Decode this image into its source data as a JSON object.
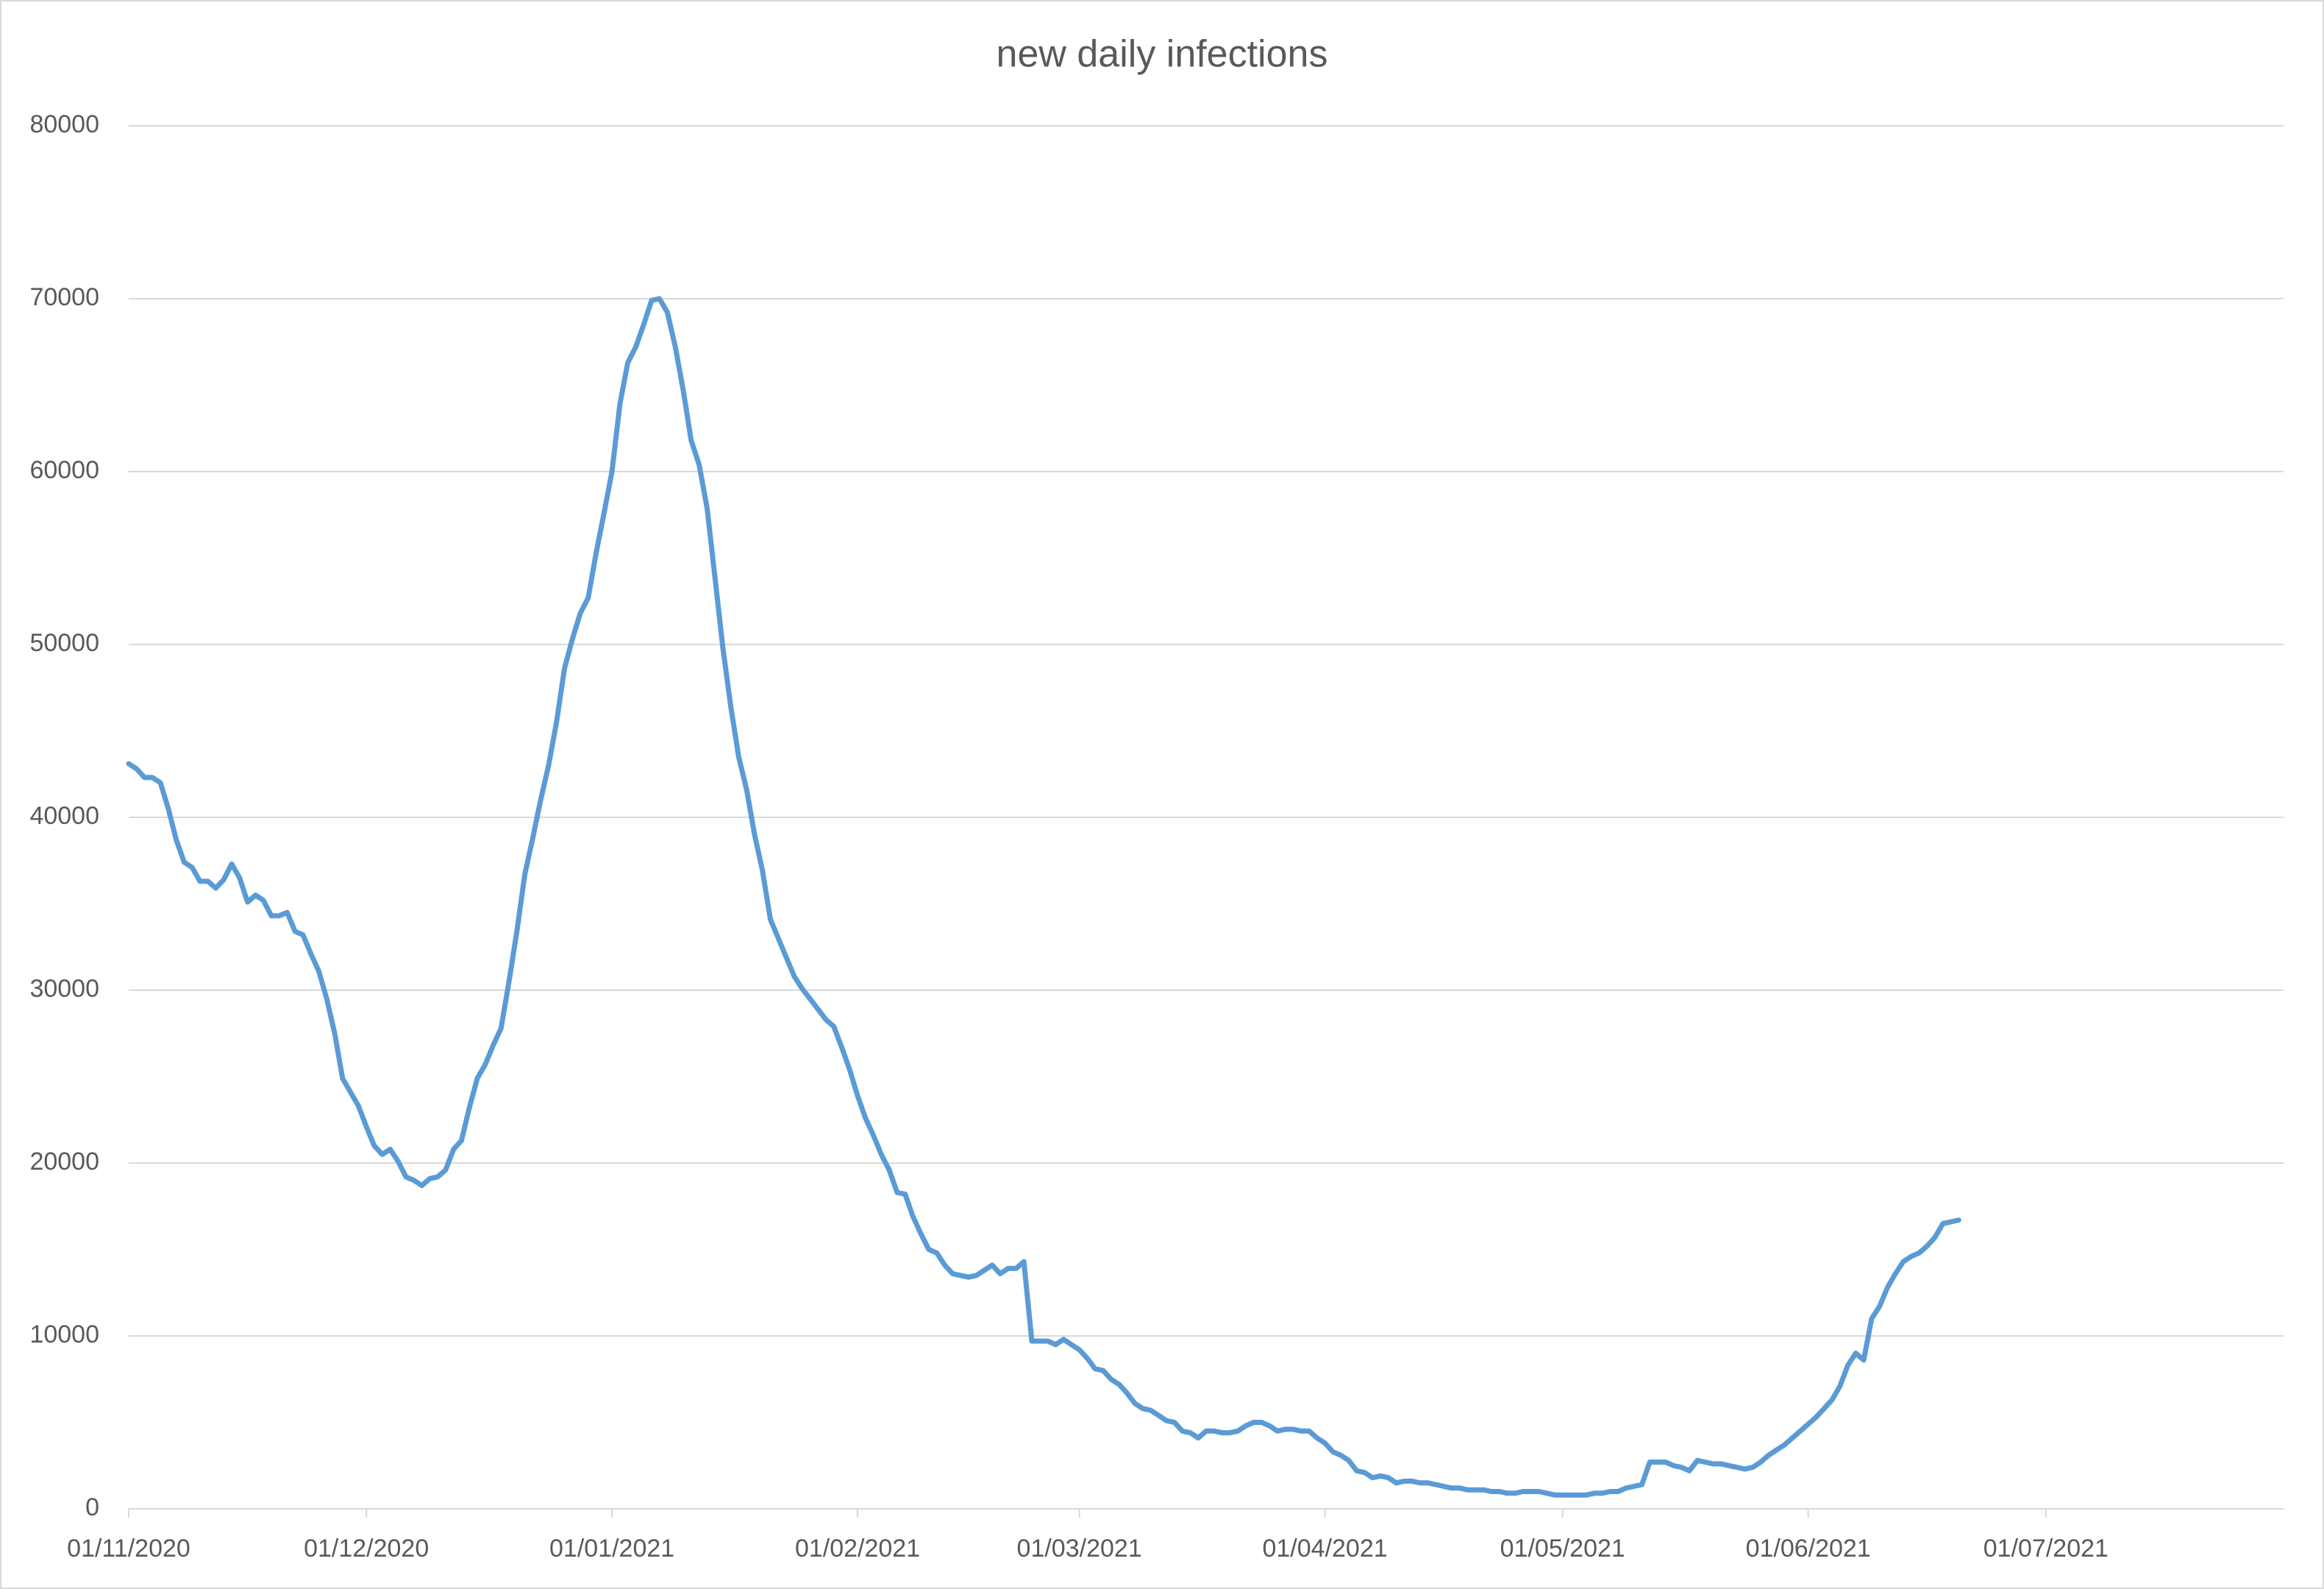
{
  "chart_data": {
    "type": "line",
    "title": "new daily infections",
    "color": "#5b9bd5",
    "grid": true,
    "x": [
      "01/11/2020",
      "02/11/2020",
      "03/11/2020",
      "04/11/2020",
      "05/11/2020",
      "06/11/2020",
      "07/11/2020",
      "08/11/2020",
      "09/11/2020",
      "10/11/2020",
      "11/11/2020",
      "12/11/2020",
      "13/11/2020",
      "14/11/2020",
      "15/11/2020",
      "16/11/2020",
      "17/11/2020",
      "18/11/2020",
      "19/11/2020",
      "20/11/2020",
      "21/11/2020",
      "22/11/2020",
      "23/11/2020",
      "24/11/2020",
      "25/11/2020",
      "26/11/2020",
      "27/11/2020",
      "28/11/2020",
      "29/11/2020",
      "30/11/2020",
      "01/12/2020",
      "02/12/2020",
      "03/12/2020",
      "04/12/2020",
      "05/12/2020",
      "06/12/2020",
      "07/12/2020",
      "08/12/2020",
      "09/12/2020",
      "10/12/2020",
      "11/12/2020",
      "12/12/2020",
      "13/12/2020",
      "14/12/2020",
      "15/12/2020",
      "16/12/2020",
      "17/12/2020",
      "18/12/2020",
      "19/12/2020",
      "20/12/2020",
      "21/12/2020",
      "22/12/2020",
      "23/12/2020",
      "24/12/2020",
      "25/12/2020",
      "26/12/2020",
      "27/12/2020",
      "28/12/2020",
      "29/12/2020",
      "30/12/2020",
      "31/12/2020",
      "01/01/2021",
      "02/01/2021",
      "03/01/2021",
      "04/01/2021",
      "05/01/2021",
      "06/01/2021",
      "07/01/2021",
      "08/01/2021",
      "09/01/2021",
      "10/01/2021",
      "11/01/2021",
      "12/01/2021",
      "13/01/2021",
      "14/01/2021",
      "15/01/2021",
      "16/01/2021",
      "17/01/2021",
      "18/01/2021",
      "19/01/2021",
      "20/01/2021",
      "21/01/2021",
      "22/01/2021",
      "23/01/2021",
      "24/01/2021",
      "25/01/2021",
      "26/01/2021",
      "27/01/2021",
      "28/01/2021",
      "29/01/2021",
      "30/01/2021",
      "31/01/2021",
      "01/02/2021",
      "02/02/2021",
      "03/02/2021",
      "04/02/2021",
      "05/02/2021",
      "06/02/2021",
      "07/02/2021",
      "08/02/2021",
      "09/02/2021",
      "10/02/2021",
      "11/02/2021",
      "12/02/2021",
      "13/02/2021",
      "14/02/2021",
      "15/02/2021",
      "16/02/2021",
      "17/02/2021",
      "18/02/2021",
      "19/02/2021",
      "20/02/2021",
      "21/02/2021",
      "22/02/2021",
      "23/02/2021",
      "24/02/2021",
      "25/02/2021",
      "26/02/2021",
      "27/02/2021",
      "28/02/2021",
      "01/03/2021",
      "02/03/2021",
      "03/03/2021",
      "04/03/2021",
      "05/03/2021",
      "06/03/2021",
      "07/03/2021",
      "08/03/2021",
      "09/03/2021",
      "10/03/2021",
      "11/03/2021",
      "12/03/2021",
      "13/03/2021",
      "14/03/2021",
      "15/03/2021",
      "16/03/2021",
      "17/03/2021",
      "18/03/2021",
      "19/03/2021",
      "20/03/2021",
      "21/03/2021",
      "22/03/2021",
      "23/03/2021",
      "24/03/2021",
      "25/03/2021",
      "26/03/2021",
      "27/03/2021",
      "28/03/2021",
      "29/03/2021",
      "30/03/2021",
      "31/03/2021",
      "01/04/2021",
      "02/04/2021",
      "03/04/2021",
      "04/04/2021",
      "05/04/2021",
      "06/04/2021",
      "07/04/2021",
      "08/04/2021",
      "09/04/2021",
      "10/04/2021",
      "11/04/2021",
      "12/04/2021",
      "13/04/2021",
      "14/04/2021",
      "15/04/2021",
      "16/04/2021",
      "17/04/2021",
      "18/04/2021",
      "19/04/2021",
      "20/04/2021",
      "21/04/2021",
      "22/04/2021",
      "23/04/2021",
      "24/04/2021",
      "25/04/2021",
      "26/04/2021",
      "27/04/2021",
      "28/04/2021",
      "29/04/2021",
      "30/04/2021",
      "01/05/2021",
      "02/05/2021",
      "03/05/2021",
      "04/05/2021",
      "05/05/2021",
      "06/05/2021",
      "07/05/2021",
      "08/05/2021",
      "09/05/2021",
      "10/05/2021",
      "11/05/2021",
      "12/05/2021",
      "13/05/2021",
      "14/05/2021",
      "15/05/2021",
      "16/05/2021",
      "17/05/2021",
      "18/05/2021",
      "19/05/2021",
      "20/05/2021",
      "21/05/2021",
      "22/05/2021",
      "23/05/2021",
      "24/05/2021",
      "25/05/2021",
      "26/05/2021",
      "27/05/2021",
      "28/05/2021",
      "29/05/2021",
      "30/05/2021",
      "31/05/2021",
      "01/06/2021",
      "02/06/2021",
      "03/06/2021",
      "04/06/2021",
      "05/06/2021",
      "06/06/2021",
      "07/06/2021",
      "08/06/2021",
      "09/06/2021",
      "10/06/2021",
      "11/06/2021",
      "12/06/2021",
      "13/06/2021",
      "14/06/2021",
      "15/06/2021",
      "16/06/2021",
      "17/06/2021",
      "18/06/2021",
      "19/06/2021",
      "20/06/2021"
    ],
    "values": [
      43100,
      42800,
      42300,
      42300,
      42000,
      40500,
      38700,
      37400,
      37100,
      36300,
      36300,
      35900,
      36400,
      37300,
      36500,
      35100,
      35500,
      35200,
      34300,
      34300,
      34500,
      33400,
      33200,
      32100,
      31100,
      29500,
      27500,
      24900,
      24100,
      23300,
      22100,
      21000,
      20500,
      20800,
      20100,
      19200,
      19000,
      18700,
      19100,
      19200,
      19600,
      20800,
      21300,
      23200,
      24900,
      25700,
      26800,
      27800,
      30500,
      33400,
      36700,
      38800,
      41000,
      43000,
      45500,
      48600,
      50300,
      51800,
      52700,
      55300,
      57600,
      60000,
      63900,
      66300,
      67200,
      68500,
      69900,
      70000,
      69200,
      67200,
      64700,
      61800,
      60400,
      57900,
      53900,
      49800,
      46400,
      43500,
      41600,
      39000,
      36900,
      34100,
      33000,
      31900,
      30800,
      30100,
      29500,
      28900,
      28300,
      27900,
      26700,
      25400,
      23900,
      22600,
      21600,
      20500,
      19600,
      18300,
      18200,
      16900,
      15900,
      15000,
      14800,
      14100,
      13600,
      13500,
      13400,
      13500,
      13800,
      14100,
      13600,
      13900,
      13900,
      14300,
      9700,
      9700,
      9700,
      9500,
      9800,
      9500,
      9200,
      8700,
      8100,
      8000,
      7500,
      7200,
      6700,
      6100,
      5800,
      5700,
      5400,
      5100,
      5000,
      4500,
      4400,
      4100,
      4500,
      4500,
      4400,
      4400,
      4500,
      4800,
      5000,
      5000,
      4800,
      4500,
      4600,
      4600,
      4500,
      4500,
      4100,
      3800,
      3300,
      3100,
      2800,
      2200,
      2100,
      1800,
      1900,
      1800,
      1500,
      1600,
      1600,
      1500,
      1500,
      1400,
      1300,
      1200,
      1200,
      1100,
      1100,
      1100,
      1000,
      1000,
      900,
      900,
      1000,
      1000,
      1000,
      900,
      800,
      800,
      800,
      800,
      800,
      900,
      900,
      1000,
      1000,
      1200,
      1300,
      1400,
      2700,
      2700,
      2700,
      2500,
      2400,
      2200,
      2800,
      2700,
      2600,
      2600,
      2500,
      2400,
      2300,
      2400,
      2700,
      3100,
      3400,
      3700,
      4100,
      4500,
      4900,
      5300,
      5800,
      6300,
      7100,
      8300,
      9000,
      8600,
      11000,
      11700,
      12800,
      13600,
      14300,
      14600,
      14800,
      15200,
      15700,
      16500,
      16600,
      16700
    ],
    "xlim": [
      "01/11/2020",
      "31/07/2021"
    ],
    "xticks": [
      "01/11/2020",
      "01/12/2020",
      "01/01/2021",
      "01/02/2021",
      "01/03/2021",
      "01/04/2021",
      "01/05/2021",
      "01/06/2021",
      "01/07/2021"
    ],
    "ylim": [
      0,
      80000
    ],
    "yticks": [
      0,
      10000,
      20000,
      30000,
      40000,
      50000,
      60000,
      70000,
      80000
    ]
  }
}
